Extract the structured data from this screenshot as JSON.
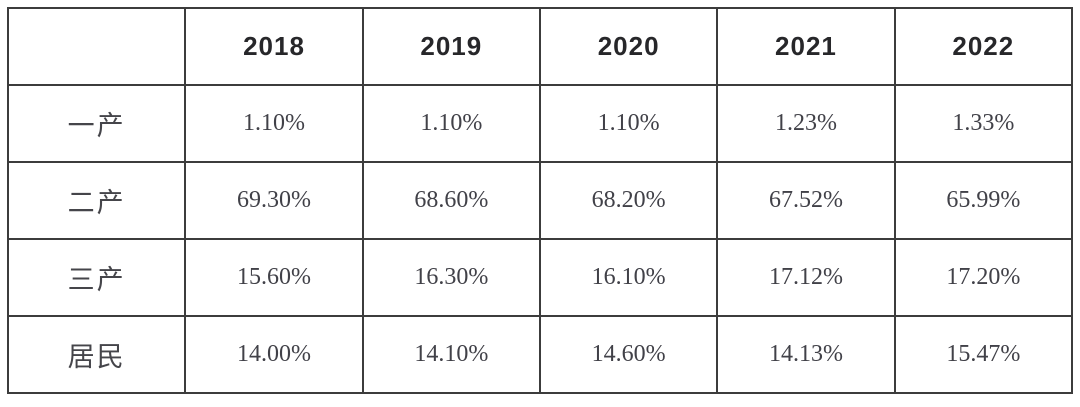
{
  "chart_data": {
    "type": "table",
    "columns": [
      "",
      "2018",
      "2019",
      "2020",
      "2021",
      "2022"
    ],
    "rows": [
      {
        "label": "一产",
        "values": [
          "1.10%",
          "1.10%",
          "1.10%",
          "1.23%",
          "1.33%"
        ]
      },
      {
        "label": "二产",
        "values": [
          "69.30%",
          "68.60%",
          "68.20%",
          "67.52%",
          "65.99%"
        ]
      },
      {
        "label": "三产",
        "values": [
          "15.60%",
          "16.30%",
          "16.10%",
          "17.12%",
          "17.20%"
        ]
      },
      {
        "label": "居民",
        "values": [
          "14.00%",
          "14.10%",
          "14.60%",
          "14.13%",
          "15.47%"
        ]
      }
    ],
    "layout": {
      "grid": "full-borders",
      "header_position": "top-row",
      "label_column_position": "left"
    }
  },
  "colors": {
    "border": "#3c3c3c",
    "header_text": "#27272a",
    "label_text": "#45454a",
    "value_text": "#414148",
    "background": "#ffffff"
  }
}
